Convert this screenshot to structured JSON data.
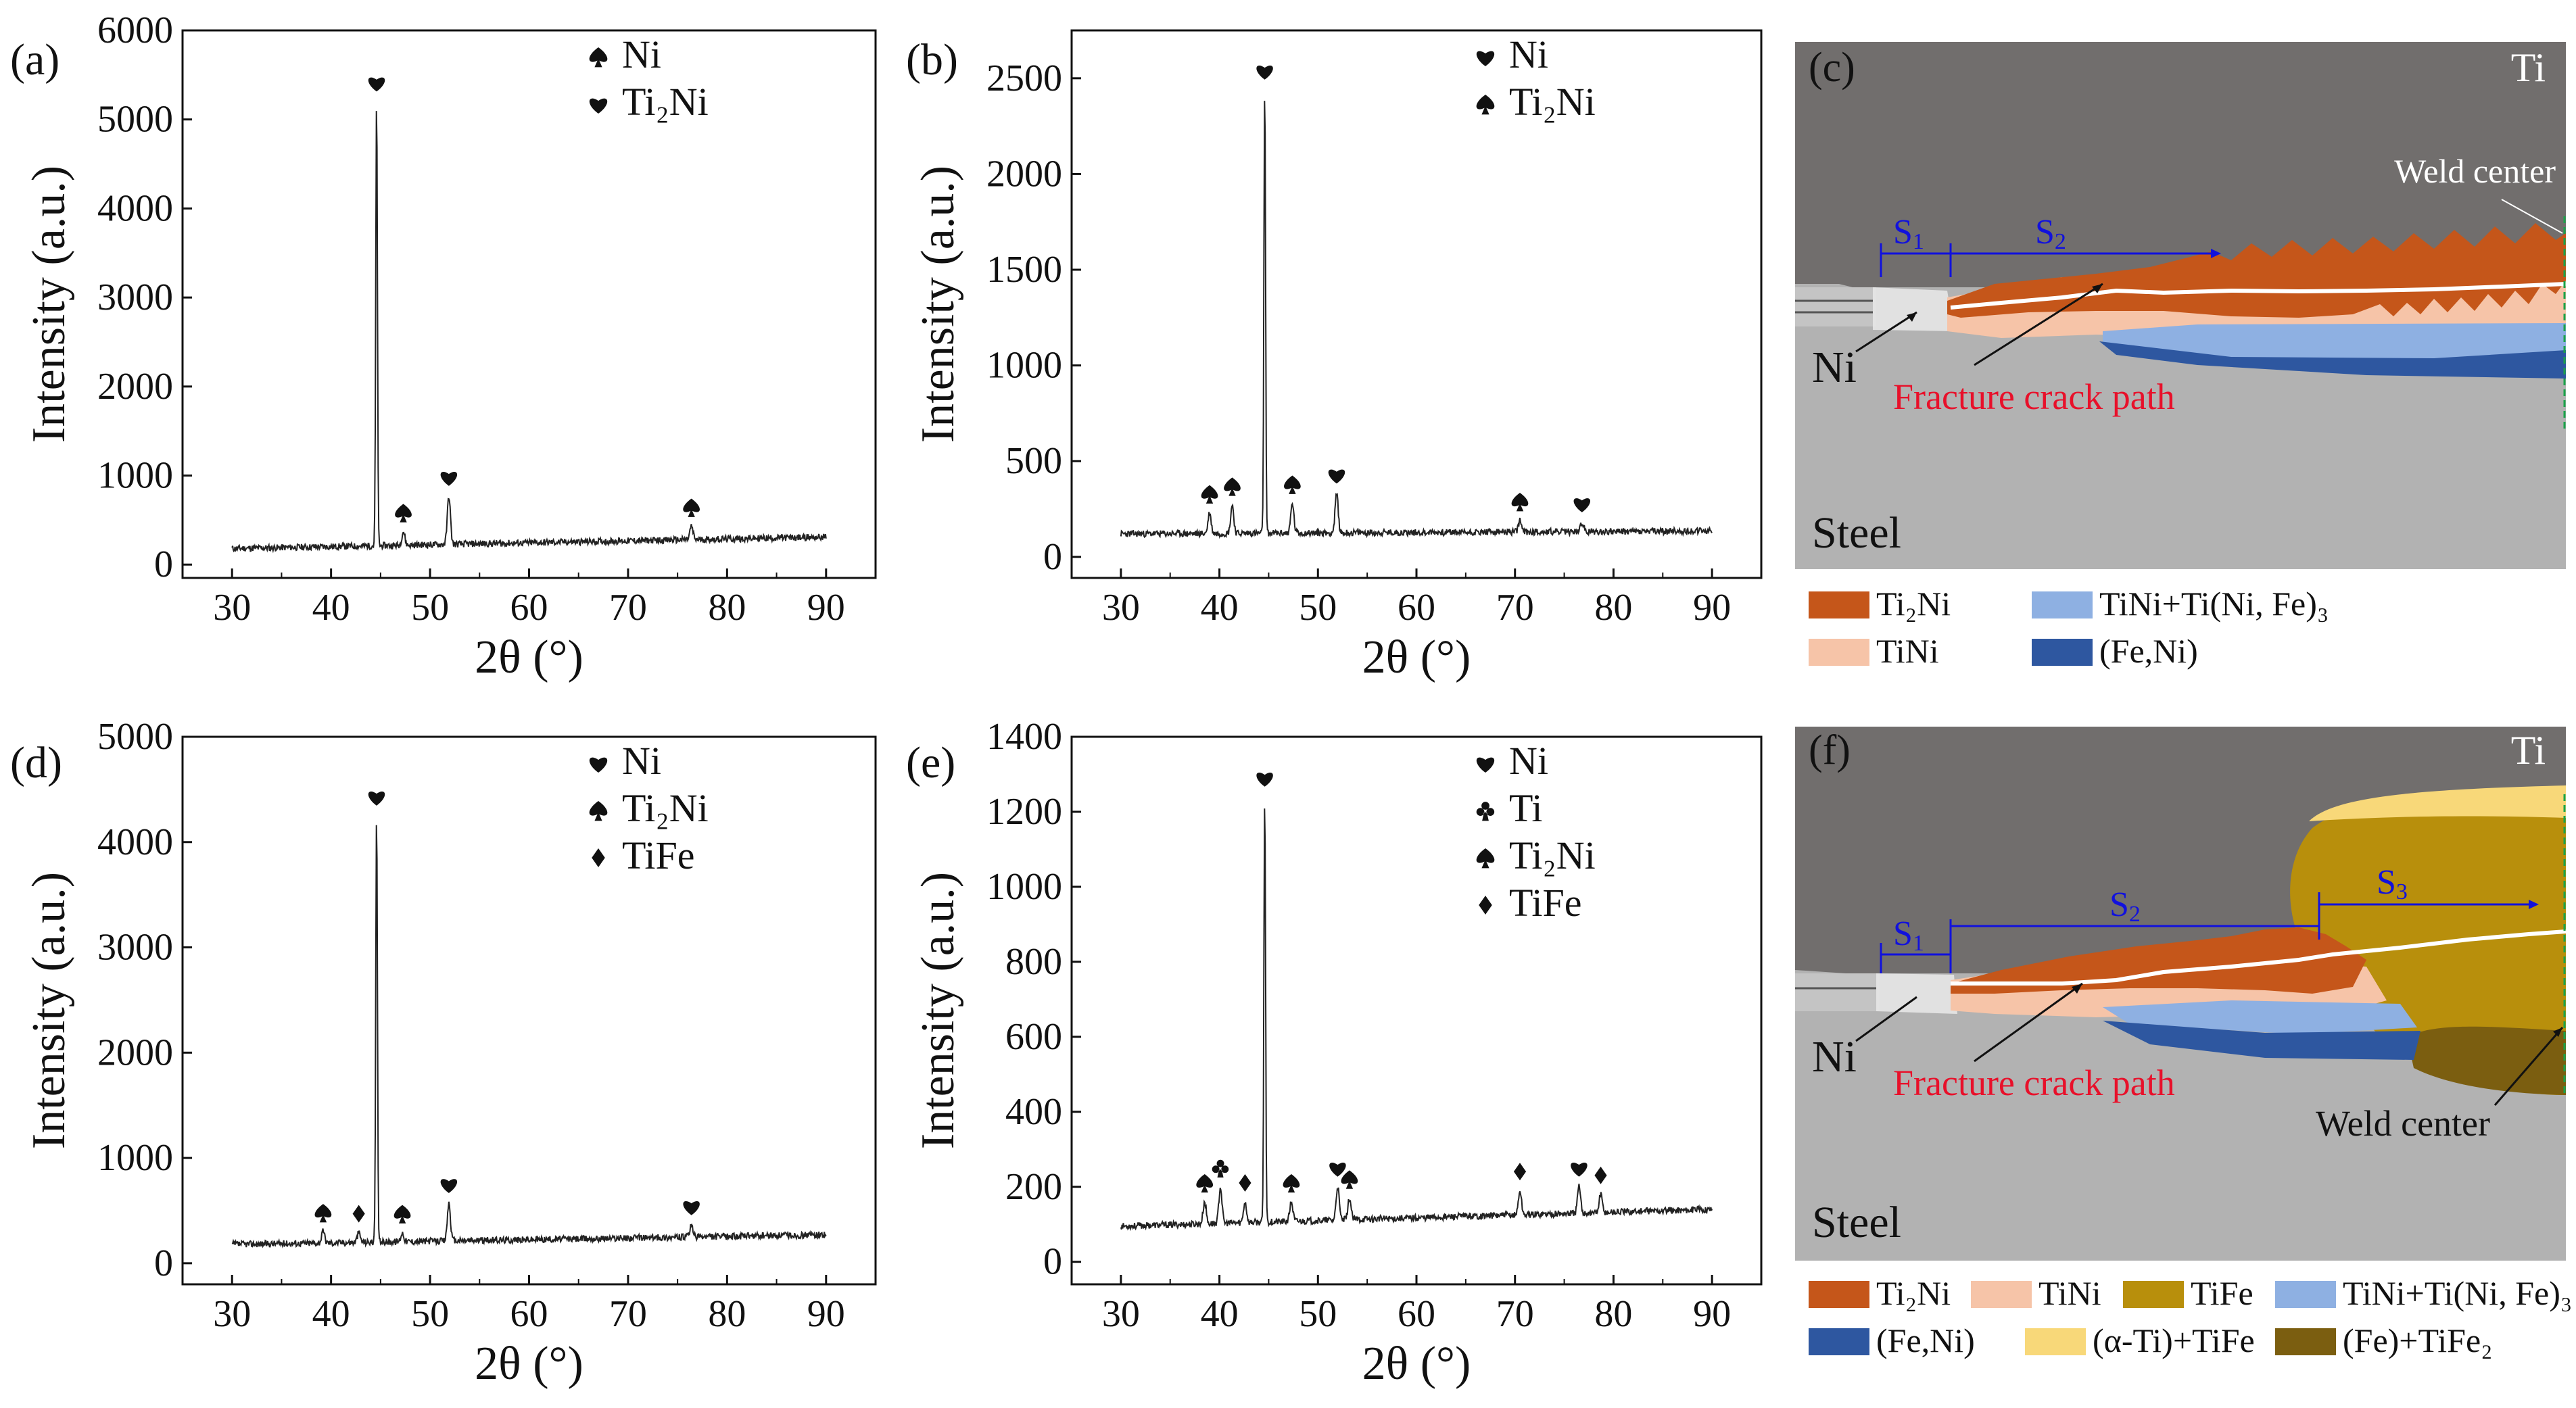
{
  "figure": {
    "description_free": true
  },
  "chart_data": [
    {
      "panel": "(a)",
      "type": "line",
      "xlabel": "2θ (°)",
      "ylabel": "Intensity (a.u.)",
      "xlim": [
        25,
        95
      ],
      "ylim": [
        -150,
        6000
      ],
      "xticks": [
        30,
        40,
        50,
        60,
        70,
        80,
        90
      ],
      "yticks": [
        0,
        1000,
        2000,
        3000,
        4000,
        5000,
        6000
      ],
      "baseline": 180,
      "baseline_end": 310,
      "peaks": [
        {
          "x": 44.6,
          "y": 5200,
          "marker": "heart"
        },
        {
          "x": 47.3,
          "y": 370,
          "marker": "spade"
        },
        {
          "x": 51.9,
          "y": 770,
          "marker": "heart"
        },
        {
          "x": 76.4,
          "y": 430,
          "marker": "spade"
        }
      ],
      "marker_legend": [
        {
          "marker": "spade",
          "label": "Ni"
        },
        {
          "marker": "heart",
          "label": "Ti₂Ni"
        }
      ]
    },
    {
      "panel": "(b)",
      "type": "line",
      "xlabel": "2θ (°)",
      "ylabel": "Intensity (a.u.)",
      "xlim": [
        25,
        95
      ],
      "ylim": [
        -110,
        2750
      ],
      "xticks": [
        30,
        40,
        50,
        60,
        70,
        80,
        90
      ],
      "yticks": [
        0,
        500,
        1000,
        1500,
        2000,
        2500
      ],
      "baseline": 120,
      "baseline_end": 135,
      "peaks": [
        {
          "x": 39.0,
          "y": 230,
          "marker": "spade"
        },
        {
          "x": 41.3,
          "y": 270,
          "marker": "spade"
        },
        {
          "x": 44.6,
          "y": 2440,
          "marker": "heart"
        },
        {
          "x": 47.4,
          "y": 280,
          "marker": "spade"
        },
        {
          "x": 51.9,
          "y": 330,
          "marker": "heart"
        },
        {
          "x": 70.5,
          "y": 190,
          "marker": "spade"
        },
        {
          "x": 76.8,
          "y": 180,
          "marker": "heart"
        }
      ],
      "marker_legend": [
        {
          "marker": "heart",
          "label": "Ni"
        },
        {
          "marker": "spade",
          "label": "Ti₂Ni"
        }
      ]
    },
    {
      "panel": "(d)",
      "type": "line",
      "xlabel": "2θ (°)",
      "ylabel": "Intensity (a.u.)",
      "xlim": [
        25,
        95
      ],
      "ylim": [
        -200,
        5000
      ],
      "xticks": [
        30,
        40,
        50,
        60,
        70,
        80,
        90
      ],
      "yticks": [
        0,
        1000,
        2000,
        3000,
        4000,
        5000
      ],
      "baseline": 180,
      "baseline_end": 270,
      "peaks": [
        {
          "x": 39.2,
          "y": 300,
          "marker": "spade"
        },
        {
          "x": 42.8,
          "y": 290,
          "marker": "diamond"
        },
        {
          "x": 44.6,
          "y": 4250,
          "marker": "heart"
        },
        {
          "x": 47.2,
          "y": 290,
          "marker": "spade"
        },
        {
          "x": 51.9,
          "y": 570,
          "marker": "heart"
        },
        {
          "x": 76.4,
          "y": 360,
          "marker": "heart"
        }
      ],
      "marker_legend": [
        {
          "marker": "heart",
          "label": "Ni"
        },
        {
          "marker": "spade",
          "label": "Ti₂Ni"
        },
        {
          "marker": "diamond",
          "label": "TiFe"
        }
      ]
    },
    {
      "panel": "(e)",
      "type": "line",
      "xlabel": "2θ (°)",
      "ylabel": "Intensity (a.u.)",
      "xlim": [
        25,
        95
      ],
      "ylim": [
        -60,
        1400
      ],
      "xticks": [
        30,
        40,
        50,
        60,
        70,
        80,
        90
      ],
      "yticks": [
        0,
        200,
        400,
        600,
        800,
        1000,
        1200,
        1400
      ],
      "baseline": 95,
      "baseline_end": 140,
      "peaks": [
        {
          "x": 38.5,
          "y": 160,
          "marker": "spade"
        },
        {
          "x": 40.1,
          "y": 200,
          "marker": "club"
        },
        {
          "x": 42.6,
          "y": 160,
          "marker": "diamond"
        },
        {
          "x": 44.6,
          "y": 1240,
          "marker": "heart"
        },
        {
          "x": 47.3,
          "y": 160,
          "marker": "spade"
        },
        {
          "x": 52.0,
          "y": 200,
          "marker": "heart"
        },
        {
          "x": 53.2,
          "y": 170,
          "marker": "spade"
        },
        {
          "x": 70.5,
          "y": 190,
          "marker": "diamond"
        },
        {
          "x": 76.5,
          "y": 200,
          "marker": "heart"
        },
        {
          "x": 78.7,
          "y": 180,
          "marker": "diamond"
        }
      ],
      "marker_legend": [
        {
          "marker": "heart",
          "label": "Ni"
        },
        {
          "marker": "club",
          "label": "Ti"
        },
        {
          "marker": "spade",
          "label": "Ti₂Ni"
        },
        {
          "marker": "diamond",
          "label": "TiFe"
        }
      ]
    }
  ],
  "schematic_c": {
    "panel": "(c)",
    "top_label": "Ti",
    "weld_center": "Weld center",
    "s1": "S",
    "s1_sub": "1",
    "s2": "S",
    "s2_sub": "2",
    "ni_label": "Ni",
    "crack_label": "Fracture crack path",
    "steel_label": "Steel",
    "legend": [
      {
        "label": "Ti₂Ni",
        "color": "#c5561a"
      },
      {
        "label": "TiNi+Ti(Ni, Fe)₃",
        "color": "#8eb0e2"
      },
      {
        "label": "TiNi",
        "color": "#f6c4a8"
      },
      {
        "label": "(Fe,Ni)",
        "color": "#2e57a0"
      }
    ]
  },
  "schematic_f": {
    "panel": "(f)",
    "top_label": "Ti",
    "weld_center": "Weld center",
    "s1": "S",
    "s1_sub": "1",
    "s2": "S",
    "s2_sub": "2",
    "s3": "S",
    "s3_sub": "3",
    "ni_label": "Ni",
    "crack_label": "Fracture crack path",
    "steel_label": "Steel",
    "legend": [
      {
        "label": "Ti₂Ni",
        "color": "#c5561a"
      },
      {
        "label": "TiNi",
        "color": "#f6c4a8"
      },
      {
        "label": "TiFe",
        "color": "#b88f0c"
      },
      {
        "label": "TiNi+Ti(Ni, Fe)₃",
        "color": "#8eb0e2"
      },
      {
        "label": "(Fe,Ni)",
        "color": "#2e57a0"
      },
      {
        "label": "(α-Ti)+TiFe",
        "color": "#f8d879"
      },
      {
        "label": "(Fe)+TiFe₂",
        "color": "#7b5e10"
      }
    ]
  },
  "colors": {
    "ti": "#716e6d",
    "steel": "#b2b2b2",
    "crack": "#ffffff",
    "crack_label": "#e8102a",
    "s_label": "#1111dd",
    "weld_line": "#1aa34a"
  }
}
